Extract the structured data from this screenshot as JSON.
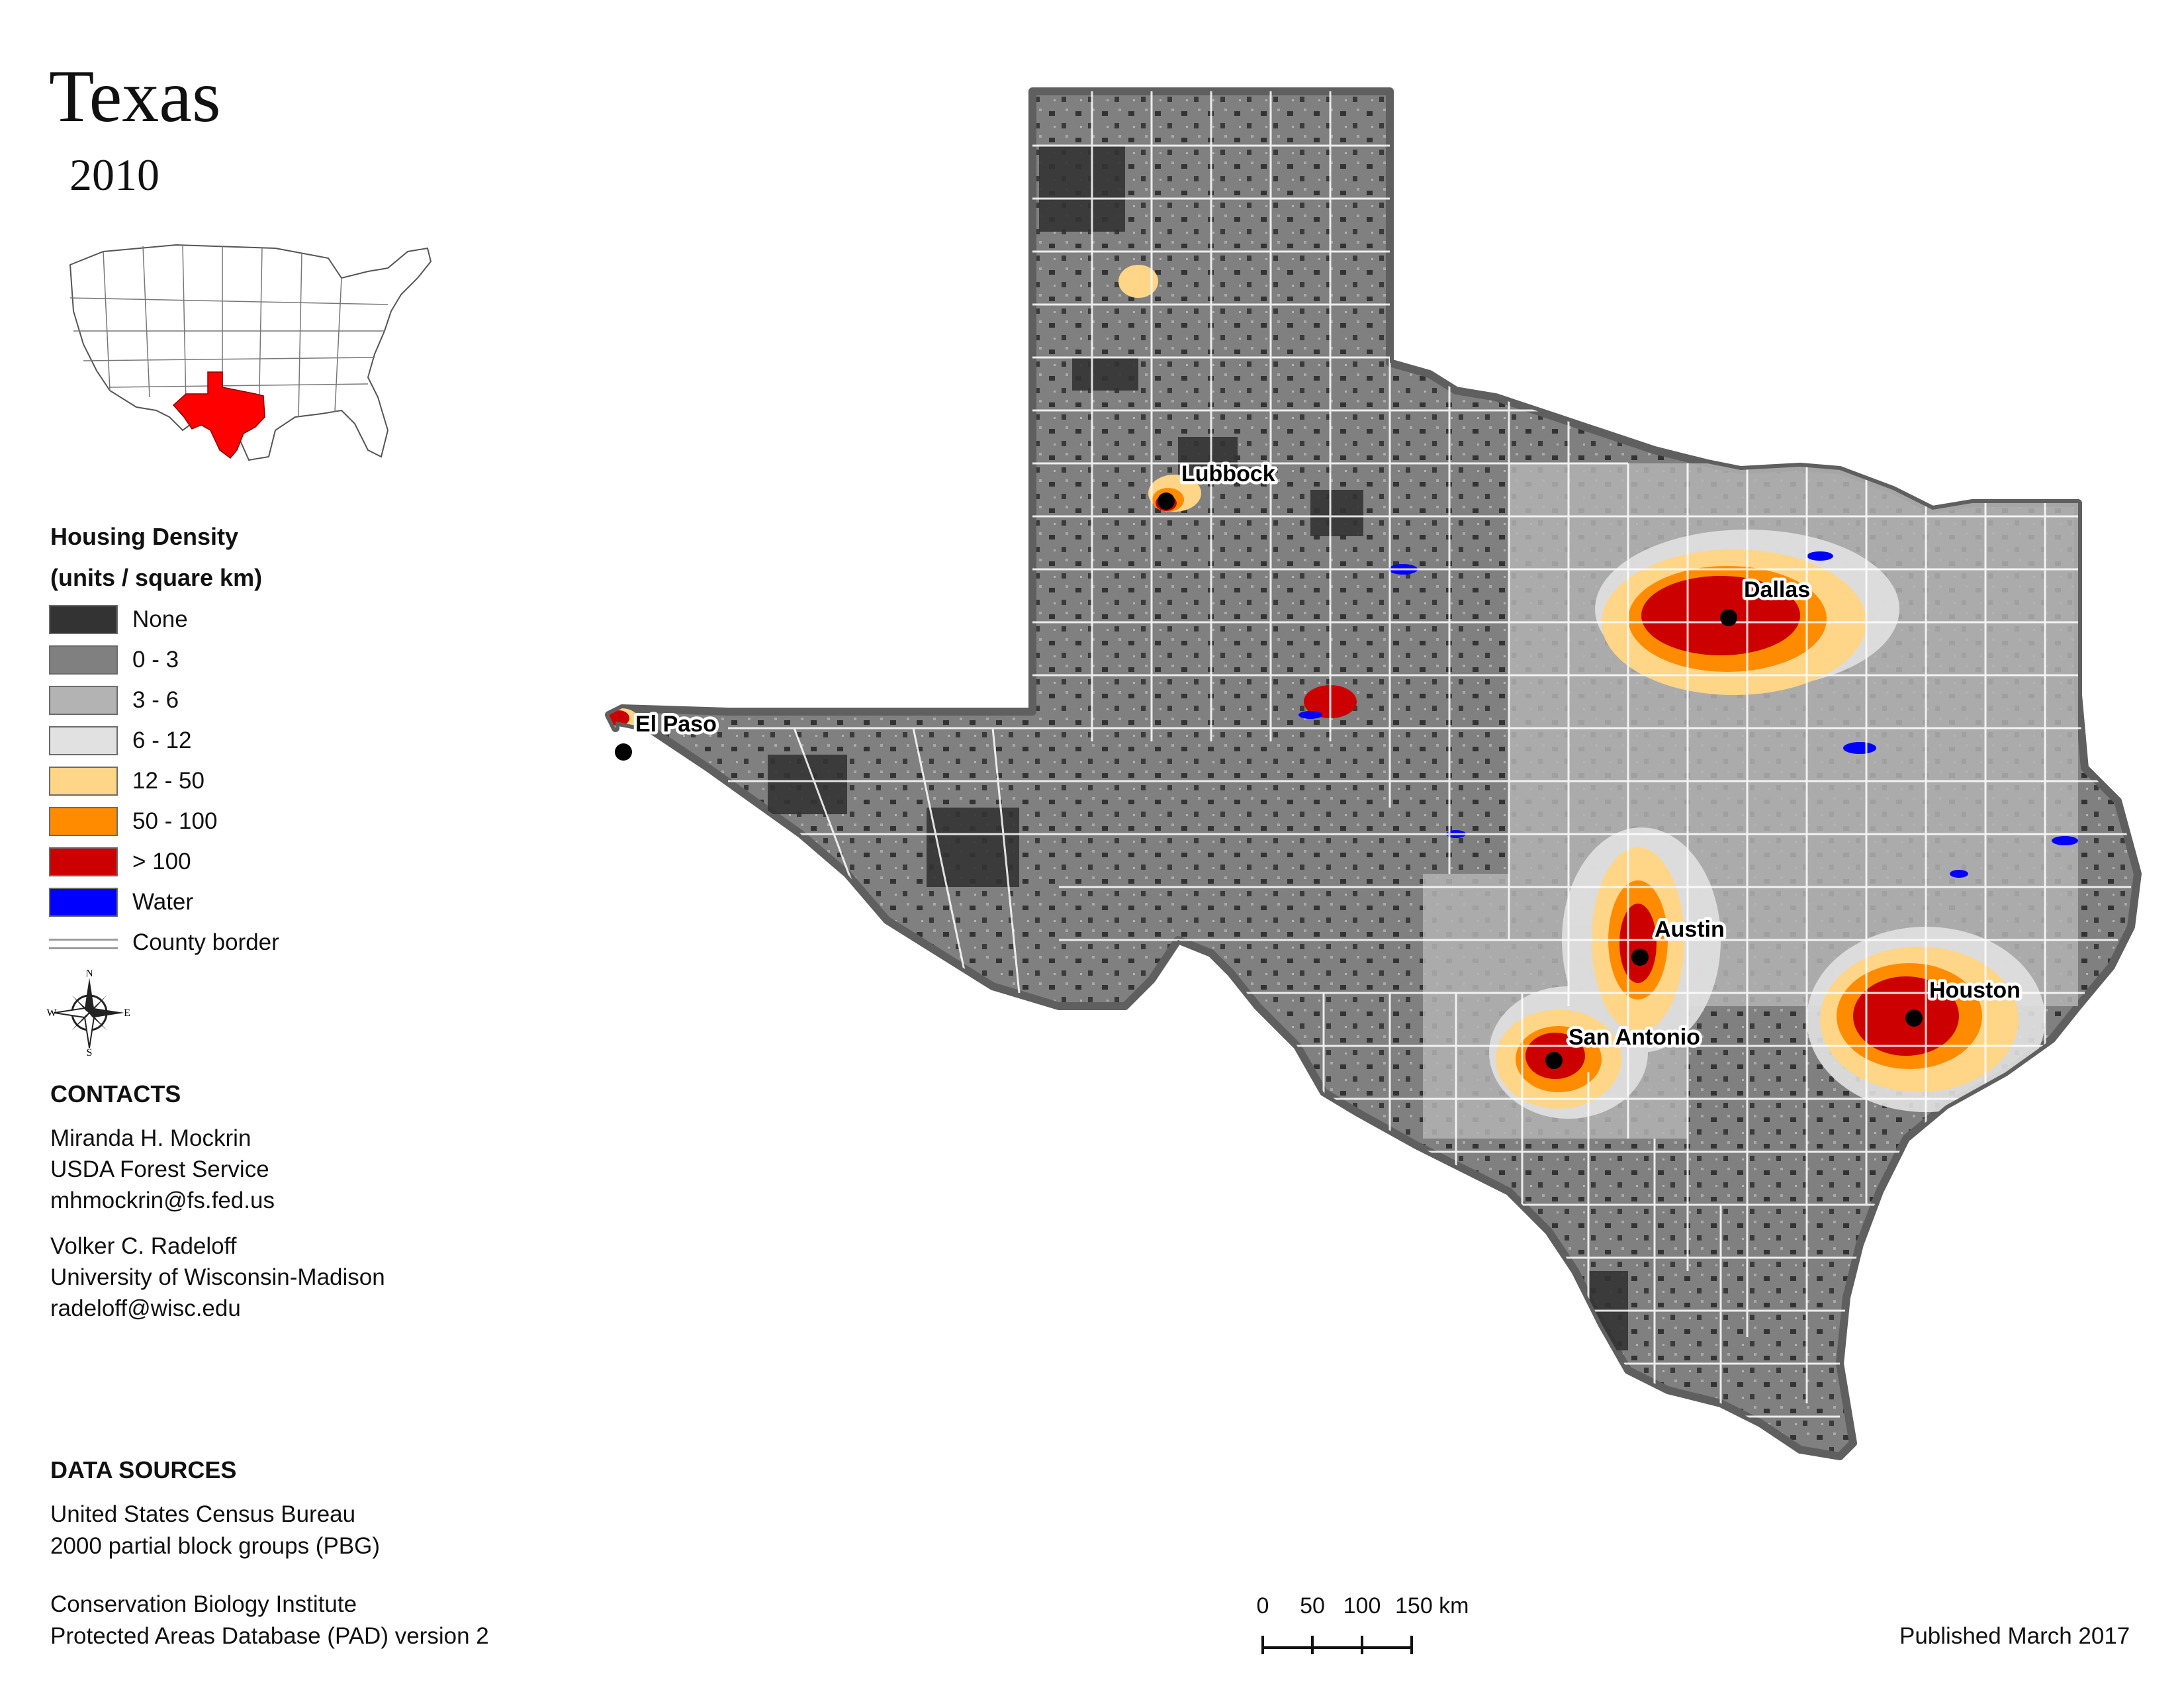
{
  "header": {
    "title": "Texas",
    "year": "2010"
  },
  "legend": {
    "title_line1": "Housing Density",
    "title_line2": "(units / square km)",
    "items": [
      {
        "label": "None",
        "color": "#333333"
      },
      {
        "label": "0 - 3",
        "color": "#808080"
      },
      {
        "label": "3 - 6",
        "color": "#b3b3b3"
      },
      {
        "label": "6 - 12",
        "color": "#e1e1e1"
      },
      {
        "label": "12 - 50",
        "color": "#ffd588"
      },
      {
        "label": "50 - 100",
        "color": "#ff8c00"
      },
      {
        "label": "> 100",
        "color": "#cc0000"
      },
      {
        "label": "Water",
        "color": "#0000ff"
      }
    ],
    "border_label": "County border"
  },
  "compass": {
    "n": "N",
    "s": "S",
    "e": "E",
    "w": "W"
  },
  "contacts": {
    "heading": "CONTACTS",
    "person1": [
      "Miranda H. Mockrin",
      "USDA Forest Service",
      "mhmockrin@fs.fed.us"
    ],
    "person2": [
      "Volker C. Radeloff",
      "University of Wisconsin-Madison",
      "radeloff@wisc.edu"
    ]
  },
  "data_sources": {
    "heading": "DATA SOURCES",
    "lines": [
      "United States Census Bureau",
      "2000 partial block groups (PBG)",
      "Conservation Biology Institute",
      "Protected Areas Database (PAD) version 2"
    ]
  },
  "cities": [
    "Lubbock",
    "Dallas",
    "El Paso",
    "Austin",
    "Houston",
    "San Antonio"
  ],
  "scale_bar": {
    "ticks": [
      "0",
      "50",
      "100",
      "150 km"
    ]
  },
  "published": "Published March 2017",
  "colors": {
    "highlight_state": "#ff0000",
    "map_outline": "#5f5f5f"
  }
}
